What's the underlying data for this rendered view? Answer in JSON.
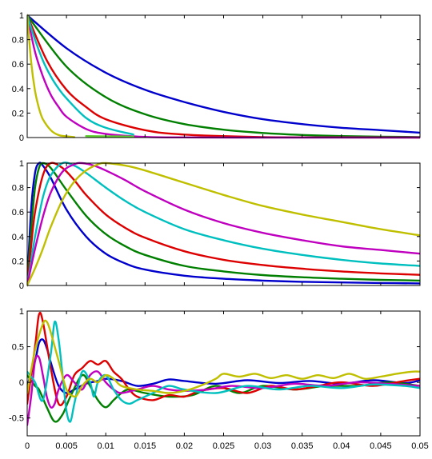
{
  "chart_data": [
    {
      "type": "line",
      "xlim": [
        0,
        0.05
      ],
      "ylim": [
        0,
        1
      ],
      "xticks": [],
      "yticks": [
        "0",
        "0.2",
        "0.4",
        "0.6",
        "0.8",
        "1"
      ],
      "grid": false,
      "series": [
        {
          "color": "#0000cc",
          "x": [
            0,
            0.005,
            0.01,
            0.015,
            0.02,
            0.025,
            0.03,
            0.035,
            0.04,
            0.045,
            0.05
          ],
          "y": [
            1,
            0.73,
            0.53,
            0.39,
            0.29,
            0.21,
            0.15,
            0.11,
            0.08,
            0.06,
            0.04
          ]
        },
        {
          "color": "#007f00",
          "x": [
            0,
            0.005,
            0.01,
            0.015,
            0.02,
            0.025,
            0.03,
            0.035,
            0.04,
            0.045,
            0.05
          ],
          "y": [
            1,
            0.58,
            0.33,
            0.19,
            0.11,
            0.064,
            0.037,
            0.021,
            0.012,
            0.007,
            0.004
          ]
        },
        {
          "color": "#dd0000",
          "x": [
            0,
            0.0025,
            0.005,
            0.0075,
            0.01,
            0.015,
            0.02,
            0.03,
            0.04,
            0.05
          ],
          "y": [
            1,
            0.63,
            0.39,
            0.25,
            0.15,
            0.06,
            0.024,
            0.004,
            0.001,
            0
          ]
        },
        {
          "color": "#bf00bf",
          "x": [
            0,
            0.001,
            0.002,
            0.003,
            0.004,
            0.005,
            0.0075,
            0.01,
            0.015,
            0.02,
            0.03,
            0.04,
            0.05
          ],
          "y": [
            1,
            0.7,
            0.5,
            0.35,
            0.25,
            0.17,
            0.07,
            0.03,
            0.005,
            0.001,
            0,
            0,
            0
          ]
        },
        {
          "color": "#00bfbf",
          "x": [
            0,
            0.001,
            0.002,
            0.003,
            0.004,
            0.005,
            0.0075,
            0.01,
            0.0135
          ],
          "y": [
            1,
            0.8,
            0.63,
            0.5,
            0.4,
            0.32,
            0.16,
            0.08,
            0.025
          ]
        },
        {
          "color": "#bfbf00",
          "x": [
            0,
            0.0005,
            0.001,
            0.0015,
            0.002,
            0.003,
            0.004,
            0.005,
            0.006
          ],
          "y": [
            1,
            0.62,
            0.38,
            0.24,
            0.15,
            0.06,
            0.02,
            0.01,
            0.003
          ]
        },
        {
          "color": "#60d030",
          "x": [
            0.0075,
            0.01,
            0.0135
          ],
          "y": [
            0.012,
            0.01,
            0.008
          ]
        }
      ]
    },
    {
      "type": "line",
      "xlim": [
        0,
        0.05
      ],
      "ylim": [
        0,
        1
      ],
      "xticks": [],
      "yticks": [
        "0",
        "0.2",
        "0.4",
        "0.6",
        "0.8",
        "1"
      ],
      "grid": false,
      "series": [
        {
          "color": "#0000cc",
          "x": [
            0,
            0.0005,
            0.001,
            0.0015,
            0.002,
            0.003,
            0.005,
            0.0075,
            0.01,
            0.0125,
            0.015,
            0.02,
            0.025,
            0.03,
            0.035,
            0.04,
            0.045,
            0.05
          ],
          "y": [
            0,
            0.62,
            0.92,
            1.0,
            0.98,
            0.88,
            0.62,
            0.4,
            0.26,
            0.18,
            0.13,
            0.08,
            0.055,
            0.04,
            0.03,
            0.025,
            0.02,
            0.017
          ]
        },
        {
          "color": "#007f00",
          "x": [
            0,
            0.0005,
            0.001,
            0.0015,
            0.002,
            0.003,
            0.005,
            0.0075,
            0.01,
            0.0125,
            0.015,
            0.02,
            0.025,
            0.03,
            0.035,
            0.04,
            0.045,
            0.05
          ],
          "y": [
            0,
            0.45,
            0.8,
            0.96,
            1.0,
            0.96,
            0.78,
            0.57,
            0.42,
            0.32,
            0.25,
            0.16,
            0.115,
            0.085,
            0.067,
            0.055,
            0.046,
            0.04
          ]
        },
        {
          "color": "#dd0000",
          "x": [
            0,
            0.0005,
            0.001,
            0.002,
            0.003,
            0.0045,
            0.006,
            0.0075,
            0.01,
            0.0125,
            0.015,
            0.02,
            0.025,
            0.03,
            0.035,
            0.04,
            0.045,
            0.05
          ],
          "y": [
            0,
            0.32,
            0.6,
            0.9,
            1.0,
            0.96,
            0.86,
            0.74,
            0.58,
            0.47,
            0.39,
            0.28,
            0.21,
            0.167,
            0.137,
            0.115,
            0.099,
            0.087
          ]
        },
        {
          "color": "#00bfbf",
          "x": [
            0,
            0.0005,
            0.001,
            0.002,
            0.003,
            0.0045,
            0.006,
            0.0075,
            0.01,
            0.0125,
            0.015,
            0.02,
            0.025,
            0.03,
            0.035,
            0.04,
            0.045,
            0.05
          ],
          "y": [
            0,
            0.2,
            0.4,
            0.72,
            0.9,
            1.0,
            0.98,
            0.92,
            0.8,
            0.69,
            0.6,
            0.46,
            0.37,
            0.3,
            0.25,
            0.21,
            0.18,
            0.16
          ]
        },
        {
          "color": "#bf00bf",
          "x": [
            0,
            0.001,
            0.002,
            0.003,
            0.0045,
            0.006,
            0.007,
            0.0085,
            0.01,
            0.0125,
            0.015,
            0.02,
            0.025,
            0.03,
            0.035,
            0.04,
            0.045,
            0.05
          ],
          "y": [
            0,
            0.3,
            0.56,
            0.76,
            0.93,
            0.99,
            1.0,
            0.98,
            0.94,
            0.86,
            0.77,
            0.62,
            0.51,
            0.43,
            0.37,
            0.32,
            0.29,
            0.26
          ]
        },
        {
          "color": "#bfbf00",
          "x": [
            0,
            0.001,
            0.002,
            0.003,
            0.0045,
            0.006,
            0.0075,
            0.009,
            0.01,
            0.0125,
            0.015,
            0.02,
            0.025,
            0.03,
            0.035,
            0.04,
            0.045,
            0.05
          ],
          "y": [
            0,
            0.14,
            0.3,
            0.48,
            0.7,
            0.85,
            0.94,
            0.99,
            1.0,
            0.98,
            0.94,
            0.84,
            0.74,
            0.65,
            0.58,
            0.52,
            0.46,
            0.41
          ]
        }
      ]
    },
    {
      "type": "line",
      "xlim": [
        0,
        0.05
      ],
      "ylim": [
        -0.75,
        1
      ],
      "xticks": [
        "0",
        "0.005",
        "0.01",
        "0.015",
        "0.02",
        "0.025",
        "0.03",
        "0.035",
        "0.04",
        "0.045",
        "0.05"
      ],
      "yticks": [
        "-0.5",
        "0",
        "0.5",
        "1"
      ],
      "grid": false,
      "series": [
        {
          "color": "#0000cc",
          "x": [
            0,
            0.001,
            0.0015,
            0.002,
            0.0025,
            0.003,
            0.004,
            0.005,
            0.006,
            0.0075,
            0.009,
            0.01,
            0.012,
            0.014,
            0.016,
            0.018,
            0.02,
            0.024,
            0.028,
            0.032,
            0.036,
            0.04,
            0.044,
            0.048,
            0.05
          ],
          "y": [
            -0.05,
            0.3,
            0.55,
            0.6,
            0.48,
            0.28,
            -0.05,
            -0.15,
            -0.1,
            -0.02,
            0.02,
            0.05,
            0.02,
            -0.05,
            -0.02,
            0.04,
            0.02,
            -0.02,
            0.03,
            -0.01,
            0.02,
            -0.02,
            0.03,
            -0.01,
            0.03
          ]
        },
        {
          "color": "#007f00",
          "x": [
            0,
            0.001,
            0.0015,
            0.0025,
            0.0035,
            0.0045,
            0.0055,
            0.007,
            0.008,
            0.009,
            0.01,
            0.011,
            0.012,
            0.013,
            0.015,
            0.018,
            0.021,
            0.024,
            0.027,
            0.03,
            0.034,
            0.038,
            0.042,
            0.046,
            0.05
          ],
          "y": [
            0.1,
            -0.05,
            -0.1,
            -0.35,
            -0.55,
            -0.45,
            -0.2,
            0.1,
            -0.05,
            -0.25,
            -0.35,
            -0.25,
            -0.15,
            -0.1,
            -0.15,
            -0.2,
            -0.18,
            -0.05,
            -0.15,
            -0.05,
            -0.1,
            -0.05,
            -0.05,
            0.0,
            -0.05
          ]
        },
        {
          "color": "#dd0000",
          "x": [
            0,
            0.001,
            0.0015,
            0.002,
            0.003,
            0.004,
            0.005,
            0.006,
            0.007,
            0.008,
            0.009,
            0.01,
            0.011,
            0.012,
            0.013,
            0.014,
            0.016,
            0.018,
            0.02,
            0.022,
            0.025,
            0.028,
            0.031,
            0.034,
            0.037,
            0.04,
            0.044,
            0.048,
            0.05
          ],
          "y": [
            -0.3,
            0.5,
            0.95,
            0.85,
            0.2,
            -0.3,
            -0.2,
            0.1,
            0.2,
            0.3,
            0.25,
            0.3,
            0.15,
            0.05,
            -0.1,
            -0.2,
            -0.25,
            -0.18,
            -0.2,
            -0.12,
            -0.08,
            -0.15,
            -0.05,
            -0.1,
            -0.05,
            0.0,
            -0.05,
            0.02,
            0.05
          ]
        },
        {
          "color": "#bf00bf",
          "x": [
            0,
            0.0005,
            0.001,
            0.0015,
            0.002,
            0.0025,
            0.003,
            0.0035,
            0.004,
            0.005,
            0.006,
            0.007,
            0.008,
            0.009,
            0.01,
            0.011,
            0.012,
            0.014,
            0.016,
            0.018,
            0.02,
            0.023,
            0.026,
            0.03,
            0.034,
            0.038,
            0.042,
            0.046,
            0.05
          ],
          "y": [
            -0.6,
            -0.2,
            0.3,
            0.35,
            0.1,
            -0.2,
            -0.35,
            -0.3,
            -0.1,
            0.1,
            0.0,
            -0.1,
            0.1,
            0.15,
            0.0,
            -0.1,
            -0.15,
            -0.1,
            -0.05,
            -0.1,
            -0.12,
            -0.1,
            -0.05,
            -0.08,
            -0.02,
            -0.05,
            0.0,
            -0.02,
            -0.05
          ]
        },
        {
          "color": "#00bfbf",
          "x": [
            0,
            0.001,
            0.002,
            0.003,
            0.0035,
            0.004,
            0.0045,
            0.005,
            0.0055,
            0.006,
            0.007,
            0.008,
            0.0085,
            0.009,
            0.01,
            0.011,
            0.012,
            0.013,
            0.014,
            0.016,
            0.018,
            0.02,
            0.024,
            0.028,
            0.032,
            0.036,
            0.04,
            0.044,
            0.048,
            0.05
          ],
          "y": [
            0.15,
            0.0,
            -0.25,
            0.4,
            0.85,
            0.6,
            0.1,
            -0.4,
            -0.55,
            -0.3,
            0.15,
            0.0,
            -0.2,
            0.0,
            0.1,
            -0.1,
            -0.25,
            -0.3,
            -0.25,
            -0.15,
            -0.05,
            -0.1,
            -0.15,
            -0.05,
            -0.1,
            -0.05,
            -0.08,
            -0.03,
            -0.05,
            -0.08
          ]
        },
        {
          "color": "#bfbf00",
          "x": [
            0,
            0.001,
            0.002,
            0.0025,
            0.003,
            0.004,
            0.005,
            0.006,
            0.0065,
            0.007,
            0.008,
            0.009,
            0.01,
            0.011,
            0.012,
            0.014,
            0.016,
            0.018,
            0.02,
            0.022,
            0.024,
            0.025,
            0.027,
            0.029,
            0.031,
            0.033,
            0.035,
            0.037,
            0.039,
            0.041,
            0.043,
            0.045,
            0.047,
            0.049,
            0.05
          ],
          "y": [
            -0.15,
            0.45,
            0.82,
            0.85,
            0.7,
            0.3,
            -0.1,
            -0.2,
            -0.15,
            -0.05,
            0.05,
            0.0,
            0.1,
            0.05,
            -0.05,
            -0.1,
            -0.12,
            -0.15,
            -0.12,
            -0.05,
            0.05,
            0.12,
            0.08,
            0.12,
            0.06,
            0.1,
            0.05,
            0.1,
            0.06,
            0.12,
            0.05,
            0.08,
            0.12,
            0.15,
            0.15
          ]
        }
      ]
    }
  ]
}
